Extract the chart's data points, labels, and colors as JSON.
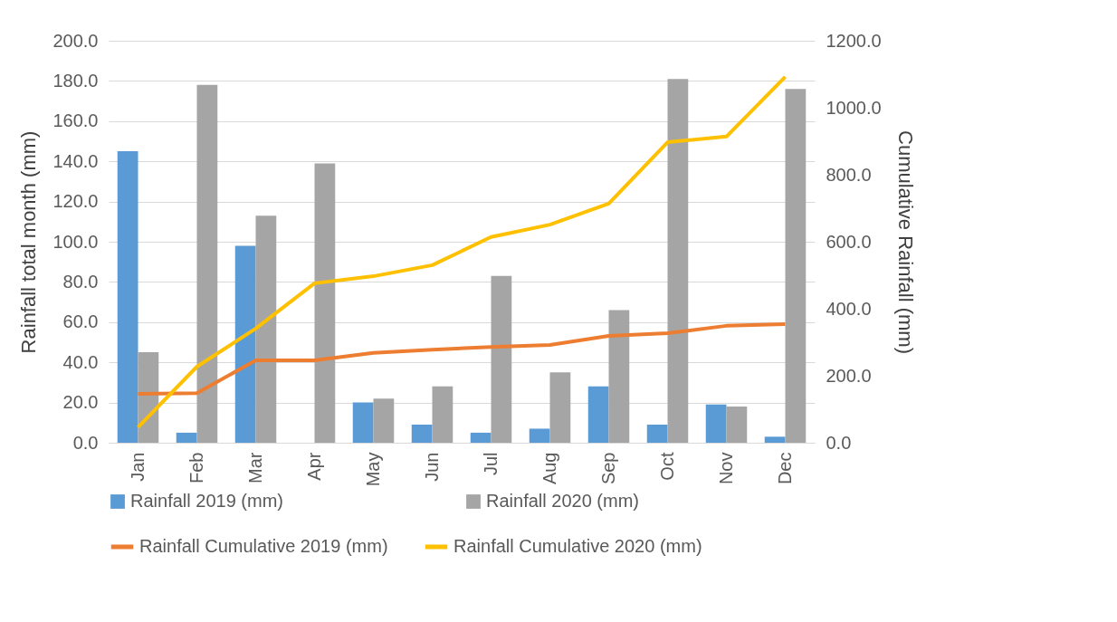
{
  "chart_data": {
    "type": "bar",
    "categories": [
      "Jan",
      "Feb",
      "Mar",
      "Apr",
      "May",
      "Jun",
      "Jul",
      "Aug",
      "Sep",
      "Oct",
      "Nov",
      "Dec"
    ],
    "ylabel": "Rainfall total month (mm)",
    "y2label": "Cumulative Rainfall (mm)",
    "ylim": [
      0,
      200
    ],
    "yticks": [
      {
        "value": 0,
        "label": "0.0"
      },
      {
        "value": 20,
        "label": "20.0"
      },
      {
        "value": 40,
        "label": "40.0"
      },
      {
        "value": 60,
        "label": "60.0"
      },
      {
        "value": 80,
        "label": "80.0"
      },
      {
        "value": 100,
        "label": "100.0"
      },
      {
        "value": 120,
        "label": "120.0"
      },
      {
        "value": 140,
        "label": "140.0"
      },
      {
        "value": 160,
        "label": "160.0"
      },
      {
        "value": 180,
        "label": "180.0"
      },
      {
        "value": 200,
        "label": "200.0"
      }
    ],
    "y2lim": [
      0,
      1200
    ],
    "y2ticks": [
      {
        "value": 0,
        "label": "0.0"
      },
      {
        "value": 200,
        "label": "200.0"
      },
      {
        "value": 400,
        "label": "400.0"
      },
      {
        "value": 600,
        "label": "600.0"
      },
      {
        "value": 800,
        "label": "800.0"
      },
      {
        "value": 1000,
        "label": "1000.0"
      },
      {
        "value": 1200,
        "label": "1200.0"
      }
    ],
    "grid": "y",
    "legend": "bottom",
    "series": [
      {
        "name": "Rainfall 2019 (mm)",
        "color": "#5b9bd5",
        "values": [
          145,
          5,
          98,
          0,
          20,
          9,
          5,
          7,
          28,
          9,
          19,
          3
        ]
      },
      {
        "name": "Rainfall 2020 (mm)",
        "color": "#a5a5a5",
        "values": [
          45,
          178,
          113,
          139,
          22,
          28,
          83,
          35,
          66,
          181,
          18,
          176
        ]
      },
      {
        "name": "Rainfall Cumulative 2019 (mm)",
        "type": "line",
        "axis": "y2",
        "color": "#ed7d31",
        "values": [
          146,
          148,
          246,
          246,
          268,
          278,
          286,
          292,
          319,
          327,
          349,
          354
        ]
      },
      {
        "name": "Rainfall Cumulative 2020 (mm)",
        "type": "line",
        "axis": "y2",
        "color": "#ffc000",
        "values": [
          46,
          227,
          341,
          476,
          497,
          530,
          614,
          651,
          714,
          897,
          914,
          1092
        ]
      }
    ]
  }
}
